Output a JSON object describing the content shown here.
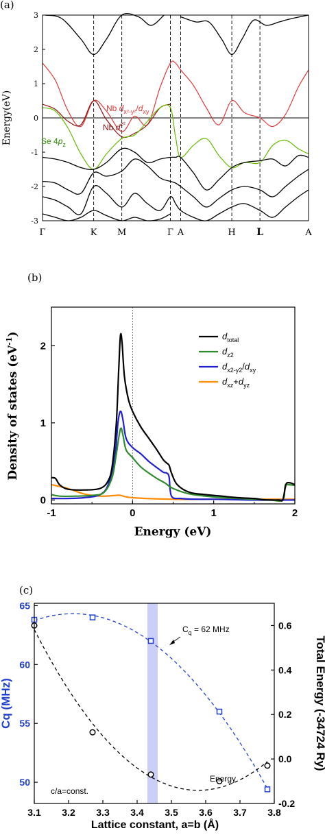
{
  "chart_data": [
    {
      "panel_label": "(a)",
      "type": "line",
      "ylabel": "Energy(eV)",
      "ylim": [
        -3,
        3
      ],
      "yticks": [
        -3,
        -2,
        -1,
        0,
        1,
        2,
        3
      ],
      "kpoint_labels": [
        "Γ",
        "K",
        "M",
        "Γ",
        "A",
        "H",
        "L",
        "A"
      ],
      "kpoint_positions": [
        0,
        0.4,
        0.62,
        1.0,
        1.08,
        1.48,
        1.7,
        2.08
      ],
      "annotations": {
        "nb_dxy_pre": "Nb ",
        "nb_dxy_d": "d",
        "nb_dxy_sub": "x²-y²",
        "nb_dxy_slash": "/",
        "nb_dxy_d2": "d",
        "nb_dxy_sub2": "xy",
        "nb_dz2_pre": "Nb ",
        "nb_dz2_d": "d",
        "nb_dz2_sub": "z²",
        "se_pre": "Se 4",
        "se_p": "p",
        "se_sub": "z"
      },
      "colors": {
        "nb_dxy": "#e03a3a",
        "nb_dz2": "#8b1010",
        "se_pz": "#66bb00",
        "bands": "#000000"
      },
      "series": [
        {
          "role": "Nb dx2-y2/dxy band",
          "color": "#e03a3a",
          "x": [
            0,
            0.1,
            0.2,
            0.3,
            0.4,
            0.5,
            0.62,
            0.72,
            0.82,
            0.92,
            1.0,
            1.04,
            1.08,
            1.18,
            1.28,
            1.38,
            1.48,
            1.58,
            1.7,
            1.8,
            1.9,
            2.0,
            2.08
          ],
          "y": [
            1.6,
            1.1,
            0.2,
            -0.25,
            0.5,
            0.2,
            -0.4,
            0.05,
            -0.2,
            0.9,
            1.6,
            1.6,
            1.4,
            0.95,
            0.3,
            -0.2,
            0.5,
            0.15,
            0.0,
            -0.25,
            0.1,
            0.9,
            1.4
          ]
        },
        {
          "role": "Nb dz2 band",
          "color": "#8b1010",
          "x": [
            0,
            0.1,
            0.2,
            0.3,
            0.4,
            0.5,
            0.62,
            0.72,
            0.82,
            0.92,
            1.0
          ],
          "y": [
            0.4,
            0.25,
            -0.1,
            -0.2,
            0.5,
            -0.05,
            -0.55,
            -0.45,
            -0.2,
            0.3,
            0.4
          ]
        },
        {
          "role": "Se 4pz band",
          "color": "#66bb00",
          "x": [
            0,
            0.1,
            0.2,
            0.3,
            0.4,
            0.5,
            0.62,
            0.72,
            0.82,
            0.92,
            1.0,
            1.04,
            1.08,
            1.18,
            1.28,
            1.38,
            1.48,
            1.58,
            1.7,
            1.8,
            1.9,
            2.0,
            2.08
          ],
          "y": [
            0.3,
            0.2,
            -0.3,
            -1.05,
            -1.5,
            -1.05,
            -0.6,
            -0.5,
            -0.1,
            0.3,
            0.3,
            -0.55,
            -1.15,
            -0.8,
            -0.6,
            -1.1,
            -1.45,
            -1.3,
            -1.3,
            -0.8,
            -0.65,
            -0.9,
            -1.05
          ]
        },
        {
          "role": "conduction band 1",
          "color": "#000000",
          "x": [
            0.02,
            0.15,
            0.3,
            0.4,
            0.5,
            0.62,
            0.75,
            0.85,
            0.95
          ],
          "y": [
            3.0,
            2.9,
            2.3,
            1.85,
            2.3,
            3.0,
            2.95,
            2.7,
            3.0
          ]
        },
        {
          "role": "conduction band 2",
          "color": "#000000",
          "x": [
            1.08,
            1.2,
            1.3,
            1.4,
            1.48,
            1.56,
            1.65,
            1.75,
            1.85,
            1.95,
            2.08
          ],
          "y": [
            2.95,
            2.8,
            2.8,
            2.3,
            1.85,
            2.3,
            2.85,
            2.7,
            2.8,
            2.9,
            3.0
          ]
        },
        {
          "role": "valence band 1",
          "color": "#000000",
          "x": [
            0,
            0.1,
            0.2,
            0.3,
            0.4,
            0.5,
            0.62,
            0.72,
            0.82,
            0.92,
            1.0,
            1.04,
            1.08,
            1.18,
            1.28,
            1.38,
            1.48,
            1.58,
            1.7,
            1.8,
            1.9,
            2.0,
            2.08
          ],
          "y": [
            -1.15,
            -1.2,
            -1.3,
            -1.45,
            -1.5,
            -1.3,
            -0.9,
            -1.0,
            -1.3,
            -1.2,
            -1.15,
            -1.15,
            -1.15,
            -1.6,
            -2.1,
            -1.8,
            -1.45,
            -1.3,
            -1.25,
            -1.2,
            -1.4,
            -1.1,
            -1.15
          ]
        },
        {
          "role": "valence band 2",
          "color": "#000000",
          "x": [
            0,
            0.1,
            0.2,
            0.3,
            0.4,
            0.5,
            0.62,
            0.72,
            0.82,
            0.92,
            1.0,
            1.04,
            1.08,
            1.18,
            1.28,
            1.38,
            1.48,
            1.58,
            1.7,
            1.8,
            1.9,
            2.0,
            2.08
          ],
          "y": [
            -1.85,
            -1.9,
            -2.1,
            -2.2,
            -1.6,
            -1.7,
            -1.55,
            -1.2,
            -1.4,
            -1.75,
            -1.85,
            -1.9,
            -2.0,
            -2.3,
            -2.6,
            -2.35,
            -2.1,
            -2.0,
            -2.1,
            -2.3,
            -2.0,
            -1.7,
            -1.5
          ]
        },
        {
          "role": "valence band 3",
          "color": "#000000",
          "x": [
            0,
            0.1,
            0.2,
            0.3,
            0.4,
            0.5,
            0.62,
            0.72,
            0.82,
            0.92,
            1.0,
            1.04,
            1.08,
            1.18,
            1.28,
            1.38,
            1.48,
            1.58,
            1.7,
            1.8,
            1.9,
            2.0,
            2.08
          ],
          "y": [
            -2.3,
            -2.4,
            -2.6,
            -2.8,
            -2.0,
            -2.2,
            -2.6,
            -2.2,
            -2.5,
            -2.7,
            -2.3,
            -2.5,
            -2.7,
            -2.9,
            -3.0,
            -2.8,
            -2.6,
            -2.5,
            -2.7,
            -2.9,
            -2.6,
            -2.3,
            -2.1
          ]
        },
        {
          "role": "valence band 4",
          "color": "#000000",
          "x": [
            0,
            0.1,
            0.2,
            0.3,
            0.4,
            0.5,
            0.62,
            0.72,
            0.82,
            0.92,
            1.0
          ],
          "y": [
            -2.8,
            -2.9,
            -3.0,
            -2.9,
            -2.7,
            -2.85,
            -3.0,
            -2.9,
            -3.0,
            -2.95,
            -2.8
          ]
        }
      ]
    },
    {
      "panel_label": "(b)",
      "type": "line",
      "xlabel": "Energy (eV)",
      "ylabel": "Density of states (eV",
      "ylabel_sup": "-1",
      "ylabel_close": ")",
      "xlim": [
        -1,
        2
      ],
      "ylim": [
        -0.05,
        2.5
      ],
      "xticks": [
        -1,
        0,
        1,
        2
      ],
      "yticks": [
        0,
        1,
        2
      ],
      "legend_position": "top-right",
      "series": [
        {
          "name": "total",
          "legend_main": "d",
          "legend_sub": "total",
          "color": "#000000",
          "x": [
            -1.0,
            -0.95,
            -0.9,
            -0.8,
            -0.6,
            -0.4,
            -0.3,
            -0.25,
            -0.2,
            -0.17,
            -0.15,
            -0.13,
            -0.1,
            -0.05,
            0.0,
            0.1,
            0.2,
            0.3,
            0.38,
            0.42,
            0.45,
            0.48,
            0.55,
            0.7,
            0.9,
            1.1,
            1.3,
            1.5,
            1.6,
            1.7,
            1.8,
            1.85,
            1.88,
            1.9,
            1.95,
            2.0
          ],
          "y": [
            0.29,
            0.28,
            0.2,
            0.14,
            0.13,
            0.15,
            0.25,
            0.45,
            1.0,
            1.7,
            2.13,
            2.05,
            1.6,
            1.3,
            1.15,
            0.95,
            0.8,
            0.65,
            0.52,
            0.48,
            0.45,
            0.35,
            0.2,
            0.1,
            0.07,
            0.05,
            0.03,
            0.02,
            0.005,
            0.0,
            0.0,
            0.0,
            0.15,
            0.22,
            0.22,
            0.2
          ]
        },
        {
          "name": "z2",
          "legend_main": "d",
          "legend_sub": "z2",
          "color": "#2e8b2e",
          "x": [
            -1.0,
            -0.9,
            -0.7,
            -0.5,
            -0.35,
            -0.25,
            -0.2,
            -0.15,
            -0.12,
            -0.08,
            0.0,
            0.1,
            0.2,
            0.3,
            0.4,
            0.5,
            0.7,
            1.0,
            1.3,
            1.5,
            1.7,
            1.85,
            1.88,
            1.9,
            2.0
          ],
          "y": [
            0.07,
            0.05,
            0.05,
            0.06,
            0.1,
            0.3,
            0.6,
            0.92,
            0.85,
            0.65,
            0.55,
            0.43,
            0.35,
            0.28,
            0.22,
            0.15,
            0.08,
            0.04,
            0.02,
            0.01,
            0.0,
            0.0,
            0.18,
            0.2,
            0.19
          ]
        },
        {
          "name": "x2-y2/xy",
          "legend_main": "d",
          "legend_sub": "x2-y2",
          "legend_slash": "/",
          "legend_main2": "d",
          "legend_sub2": "xy",
          "color": "#1f1fd0",
          "x": [
            -1.0,
            -0.8,
            -0.6,
            -0.4,
            -0.3,
            -0.22,
            -0.18,
            -0.15,
            -0.12,
            -0.08,
            0.0,
            0.1,
            0.2,
            0.3,
            0.38,
            0.42,
            0.45,
            0.48,
            0.6,
            0.8,
            1.0,
            1.5,
            2.0
          ],
          "y": [
            0.02,
            0.02,
            0.03,
            0.07,
            0.2,
            0.55,
            1.0,
            1.15,
            1.05,
            0.8,
            0.68,
            0.6,
            0.5,
            0.42,
            0.36,
            0.35,
            0.3,
            0.05,
            0.02,
            0.01,
            0.01,
            0.0,
            0.0
          ]
        },
        {
          "name": "xz+yz",
          "legend_main": "d",
          "legend_sub": "xz",
          "legend_plus": "+",
          "legend_main2": "d",
          "legend_sub2": "yz",
          "color": "#ff8c00",
          "x": [
            -1.0,
            -0.8,
            -0.6,
            -0.4,
            -0.2,
            -0.15,
            0.0,
            0.5,
            1.0,
            1.5,
            2.0
          ],
          "y": [
            0.2,
            0.15,
            0.08,
            0.05,
            0.06,
            0.06,
            0.03,
            0.01,
            0.01,
            0.01,
            0.01
          ]
        }
      ]
    },
    {
      "panel_label": "(c)",
      "type": "scatter",
      "xlabel": "Lattice constant, a=b (Å)",
      "ylabel_left": "Cq (MHz)",
      "ylabel_right": "Total Energy (-34724 Ry)",
      "xlim": [
        3.1,
        3.8
      ],
      "ylim_left": [
        48.2,
        65.2
      ],
      "ylim_right": [
        -0.2,
        0.7
      ],
      "xticks": [
        "3.1",
        "3.2",
        "3.3",
        "3.4",
        "3.5",
        "3.6",
        "3.7",
        "3.8"
      ],
      "yticks_left": [
        "50",
        "55",
        "60",
        "65"
      ],
      "yticks_right": [
        "-0.2",
        "0.0",
        "0.2",
        "0.4",
        "0.6"
      ],
      "highlight_band_x": [
        3.43,
        3.46
      ],
      "annotation_cq": "C",
      "annotation_cq_sub": "q",
      "annotation_cq_rest": " = 62 MHz",
      "annotation_energy": "Energy",
      "annotation_ca": "c/a=const.",
      "series": [
        {
          "role": "Cq",
          "axis": "left",
          "marker": "square",
          "color": "#1f3fd0",
          "x": [
            3.1,
            3.27,
            3.44,
            3.64,
            3.78
          ],
          "y": [
            63.8,
            64.0,
            62.0,
            56.0,
            49.4
          ]
        },
        {
          "role": "Total energy",
          "axis": "right",
          "marker": "circle",
          "color": "#000000",
          "x": [
            3.1,
            3.27,
            3.44,
            3.64,
            3.78
          ],
          "y": [
            0.6,
            0.12,
            -0.07,
            -0.1,
            -0.03
          ]
        }
      ]
    }
  ]
}
